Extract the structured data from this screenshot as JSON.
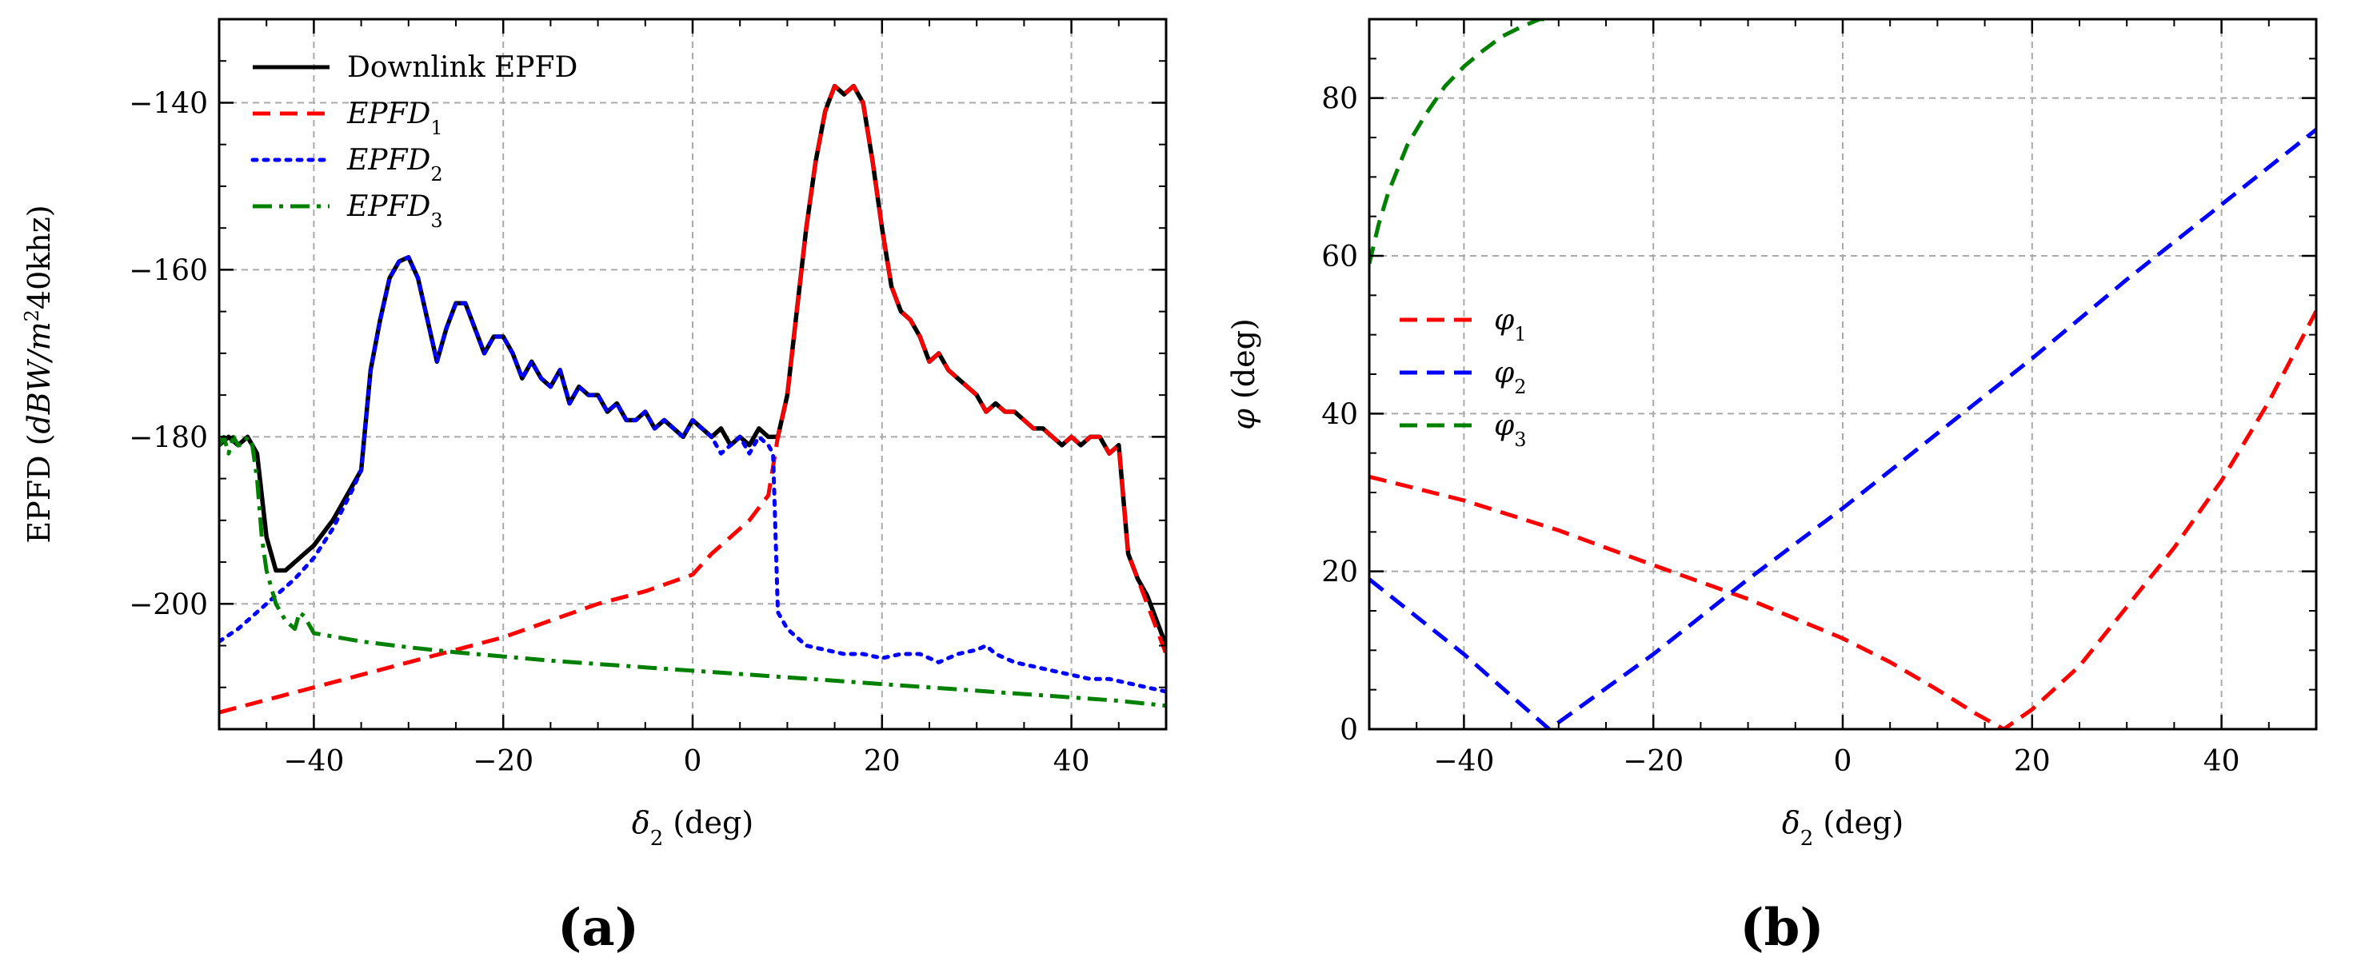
{
  "chart_data": [
    {
      "type": "line",
      "panel_label": "(a)",
      "title": "",
      "xlabel": "δ2 (deg)",
      "ylabel": "EPFD (dBW/m²40khz)",
      "xlim": [
        -50,
        50
      ],
      "ylim": [
        -215,
        -130
      ],
      "xticks": [
        -40,
        -20,
        0,
        20,
        40
      ],
      "yticks": [
        -200,
        -180,
        -160,
        -140
      ],
      "xtick_labels": [
        "−40",
        "−20",
        "0",
        "20",
        "40"
      ],
      "ytick_labels": [
        "−200",
        "−180",
        "−160",
        "−140"
      ],
      "grid": true,
      "legend_position": "top-left",
      "series": [
        {
          "name": "Downlink EPFD",
          "color": "#000000",
          "style": "solid",
          "x": [
            -50,
            -49,
            -48,
            -47,
            -46,
            -45,
            -44,
            -43,
            -42,
            -41,
            -40,
            -38,
            -36,
            -35,
            -34,
            -33,
            -32,
            -31,
            -30,
            -29,
            -28,
            -27,
            -26,
            -25,
            -24,
            -23,
            -22,
            -21,
            -20,
            -19,
            -18,
            -17,
            -16,
            -15,
            -14,
            -13,
            -12,
            -11,
            -10,
            -9,
            -8,
            -7,
            -6,
            -5,
            -4,
            -3,
            -2,
            -1,
            0,
            1,
            2,
            3,
            4,
            5,
            6,
            7,
            8,
            9,
            10,
            11,
            12,
            13,
            14,
            15,
            16,
            17,
            18,
            19,
            20,
            21,
            22,
            23,
            24,
            25,
            26,
            27,
            28,
            29,
            30,
            31,
            32,
            33,
            34,
            35,
            36,
            37,
            38,
            39,
            40,
            41,
            42,
            43,
            44,
            45,
            46,
            47,
            48,
            49,
            50
          ],
          "y": [
            -181,
            -180,
            -181,
            -180,
            -182,
            -192,
            -196,
            -196,
            -195,
            -194,
            -193,
            -190,
            -186,
            -184,
            -172,
            -166,
            -161,
            -159,
            -158.5,
            -161,
            -166,
            -171,
            -167,
            -164,
            -164,
            -167,
            -170,
            -168,
            -168,
            -170,
            -173,
            -171,
            -173,
            -174,
            -172,
            -176,
            -174,
            -175,
            -175,
            -177,
            -176,
            -178,
            -178,
            -177,
            -179,
            -178,
            -179,
            -180,
            -178,
            -179,
            -180,
            -179,
            -181,
            -180,
            -181,
            -179,
            -180,
            -180,
            -175,
            -165,
            -155,
            -147,
            -141,
            -138,
            -139,
            -138,
            -140,
            -147,
            -155,
            -162,
            -165,
            -166,
            -168,
            -171,
            -170,
            -172,
            -173,
            -174,
            -175,
            -177,
            -176,
            -177,
            -177,
            -178,
            -179,
            -179,
            -180,
            -181,
            -180,
            -181,
            -180,
            -180,
            -182,
            -181,
            -194,
            -197,
            -199,
            -202,
            -205
          ]
        },
        {
          "name": "EPFD₁",
          "color": "#ff0000",
          "style": "dashed",
          "x": [
            -50,
            -45,
            -40,
            -35,
            -30,
            -25,
            -20,
            -15,
            -10,
            -5,
            0,
            2,
            4,
            6,
            8,
            9,
            10,
            11,
            12,
            13,
            14,
            15,
            16,
            17,
            18,
            19,
            20,
            21,
            22,
            23,
            24,
            25,
            26,
            27,
            28,
            29,
            30,
            31,
            32,
            33,
            34,
            35,
            36,
            37,
            38,
            39,
            40,
            41,
            42,
            43,
            44,
            45,
            46,
            47,
            48,
            49,
            50
          ],
          "y": [
            -213,
            -211.5,
            -210,
            -208.5,
            -207,
            -205.5,
            -204,
            -202,
            -200,
            -198.5,
            -196.5,
            -194,
            -192,
            -190,
            -187,
            -180,
            -175,
            -165,
            -155,
            -147,
            -141,
            -138,
            -139,
            -138,
            -140,
            -147,
            -155,
            -162,
            -165,
            -166,
            -168,
            -171,
            -170,
            -172,
            -173,
            -174,
            -175,
            -177,
            -176,
            -177,
            -177,
            -178,
            -179,
            -179,
            -180,
            -181,
            -180,
            -181,
            -180,
            -180,
            -182,
            -181,
            -194,
            -197,
            -200,
            -203,
            -206
          ]
        },
        {
          "name": "EPFD₂",
          "color": "#0000ff",
          "style": "dotted",
          "x": [
            -50,
            -48,
            -46,
            -44,
            -42,
            -40,
            -38,
            -36,
            -35,
            -34,
            -33,
            -32,
            -31,
            -30,
            -29,
            -28,
            -27,
            -26,
            -25,
            -24,
            -23,
            -22,
            -21,
            -20,
            -19,
            -18,
            -17,
            -16,
            -15,
            -14,
            -13,
            -12,
            -11,
            -10,
            -9,
            -8,
            -7,
            -6,
            -5,
            -4,
            -3,
            -2,
            -1,
            0,
            1,
            2,
            3,
            4,
            5,
            6,
            7,
            8,
            8.5,
            9,
            10,
            12,
            14,
            16,
            18,
            20,
            22,
            24,
            26,
            28,
            30,
            31,
            32,
            33,
            34,
            36,
            38,
            40,
            42,
            44,
            46,
            48,
            50
          ],
          "y": [
            -204.5,
            -203,
            -201,
            -199,
            -197,
            -194.5,
            -191,
            -186.5,
            -184,
            -172,
            -166,
            -161,
            -159,
            -158.5,
            -161,
            -166,
            -171,
            -167,
            -164,
            -164,
            -167,
            -170,
            -168,
            -168,
            -170,
            -173,
            -171,
            -173,
            -174,
            -172,
            -176,
            -174,
            -175,
            -175,
            -177,
            -176,
            -178,
            -178,
            -177,
            -179,
            -178,
            -179,
            -180,
            -178,
            -179,
            -180,
            -182,
            -181,
            -180,
            -182,
            -180,
            -181,
            -182,
            -201,
            -203,
            -205,
            -205.5,
            -206,
            -206,
            -206.5,
            -206,
            -206,
            -207,
            -206,
            -205.5,
            -205,
            -206,
            -206.5,
            -207,
            -207.5,
            -208,
            -208.5,
            -209,
            -209,
            -209.5,
            -210,
            -210.5
          ]
        },
        {
          "name": "EPFD₃",
          "color": "#008000",
          "style": "dashdot",
          "x": [
            -50,
            -49.5,
            -49,
            -48.5,
            -48,
            -47.5,
            -47,
            -46.5,
            -46,
            -45.5,
            -45,
            -44.5,
            -44,
            -43,
            -42,
            -41.5,
            -41,
            -40.5,
            -40,
            -35,
            -30,
            -25,
            -20,
            -15,
            -10,
            -5,
            0,
            5,
            10,
            15,
            20,
            25,
            30,
            35,
            40,
            45,
            50
          ],
          "y": [
            -181,
            -180,
            -182,
            -180,
            -181,
            -181,
            -180,
            -181,
            -185,
            -192,
            -196,
            -198,
            -200,
            -202,
            -203,
            -201,
            -201.5,
            -202.5,
            -203.5,
            -204.5,
            -205.2,
            -205.8,
            -206.3,
            -206.8,
            -207.2,
            -207.6,
            -208,
            -208.4,
            -208.8,
            -209.2,
            -209.6,
            -210,
            -210.4,
            -210.8,
            -211.2,
            -211.6,
            -212.2
          ]
        }
      ]
    },
    {
      "type": "line",
      "panel_label": "(b)",
      "title": "",
      "xlabel": "δ2 (deg)",
      "ylabel": "φ (deg)",
      "xlim": [
        -50,
        50
      ],
      "ylim": [
        0,
        90
      ],
      "xticks": [
        -40,
        -20,
        0,
        20,
        40
      ],
      "yticks": [
        0,
        20,
        40,
        60,
        80
      ],
      "xtick_labels": [
        "−40",
        "−20",
        "0",
        "20",
        "40"
      ],
      "ytick_labels": [
        "0",
        "20",
        "40",
        "60",
        "80"
      ],
      "grid": true,
      "legend_position": "center-left",
      "series": [
        {
          "name": "φ₁",
          "color": "#ff0000",
          "style": "dashed",
          "x": [
            -50,
            -40,
            -30,
            -20,
            -10,
            0,
            5,
            10,
            14,
            17,
            20,
            25,
            30,
            35,
            40,
            45,
            50
          ],
          "y": [
            32,
            29,
            25.2,
            20.8,
            16.5,
            11.5,
            8.5,
            5,
            2,
            0,
            2.5,
            8,
            15.5,
            23,
            31.5,
            41.5,
            53
          ]
        },
        {
          "name": "φ₂",
          "color": "#0000ff",
          "style": "dashed",
          "x": [
            -50,
            -40,
            -31,
            -20,
            -10,
            0,
            10,
            20,
            30,
            40,
            50
          ],
          "y": [
            19,
            9.5,
            0,
            9.5,
            19,
            28,
            37.5,
            47,
            57,
            66.5,
            76
          ]
        },
        {
          "name": "φ₃",
          "color": "#008000",
          "style": "dashed",
          "x": [
            -50,
            -49,
            -48,
            -46,
            -44,
            -42,
            -40,
            -38,
            -36,
            -34,
            -32,
            -31
          ],
          "y": [
            59,
            64,
            68,
            74,
            78,
            81.5,
            84,
            86,
            87.8,
            89,
            90,
            90
          ]
        }
      ]
    }
  ]
}
